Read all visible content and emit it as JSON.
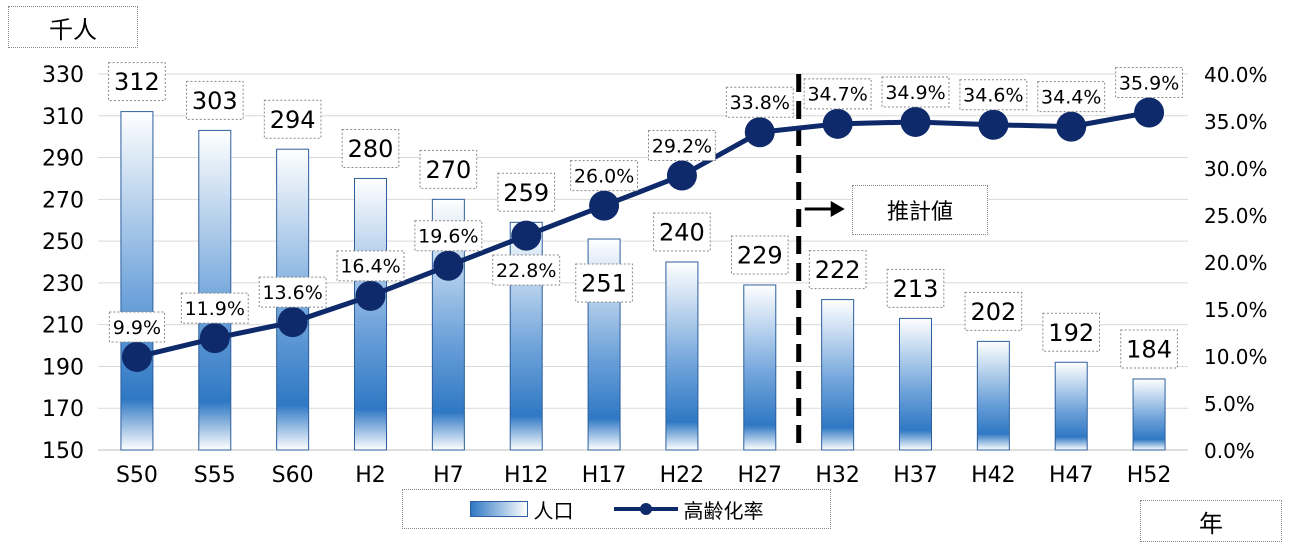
{
  "units": {
    "left": "千人",
    "right": "年"
  },
  "projection_label": "推計値",
  "legend": {
    "bar_label": "人口",
    "line_label": "高齢化率"
  },
  "colors": {
    "bar_dark": "#2f78c4",
    "bar_light": "#ffffff",
    "line": "#0e2a6b",
    "grid": "#d9d9d9"
  },
  "chart_data": {
    "type": "bar",
    "categories": [
      "S50",
      "S55",
      "S60",
      "H2",
      "H7",
      "H12",
      "H17",
      "H22",
      "H27",
      "H32",
      "H37",
      "H42",
      "H47",
      "H52"
    ],
    "series": [
      {
        "name": "人口",
        "type": "bar",
        "axis": "left",
        "values": [
          312,
          303,
          294,
          280,
          270,
          259,
          251,
          240,
          229,
          222,
          213,
          202,
          192,
          184
        ],
        "labels": [
          "312",
          "303",
          "294",
          "280",
          "270",
          "259",
          "251",
          "240",
          "229",
          "222",
          "213",
          "202",
          "192",
          "184"
        ]
      },
      {
        "name": "高齢化率",
        "type": "line",
        "axis": "right",
        "values": [
          9.9,
          11.9,
          13.6,
          16.4,
          19.6,
          22.8,
          26.0,
          29.2,
          33.8,
          34.7,
          34.9,
          34.6,
          34.4,
          35.9
        ],
        "labels": [
          "9.9%",
          "11.9%",
          "13.6%",
          "16.4%",
          "19.6%",
          "22.8%",
          "26.0%",
          "29.2%",
          "33.8%",
          "34.7%",
          "34.9%",
          "34.6%",
          "34.4%",
          "35.9%"
        ]
      }
    ],
    "y_left": {
      "min": 150,
      "max": 330,
      "ticks": [
        "150",
        "170",
        "190",
        "210",
        "230",
        "250",
        "270",
        "290",
        "310",
        "330"
      ]
    },
    "y_right": {
      "min": 0,
      "max": 40,
      "ticks": [
        "0.0%",
        "5.0%",
        "10.0%",
        "15.0%",
        "20.0%",
        "25.0%",
        "30.0%",
        "35.0%",
        "40.0%"
      ]
    },
    "grid": true,
    "projection_start_after": "H27",
    "legend_position": "bottom"
  }
}
